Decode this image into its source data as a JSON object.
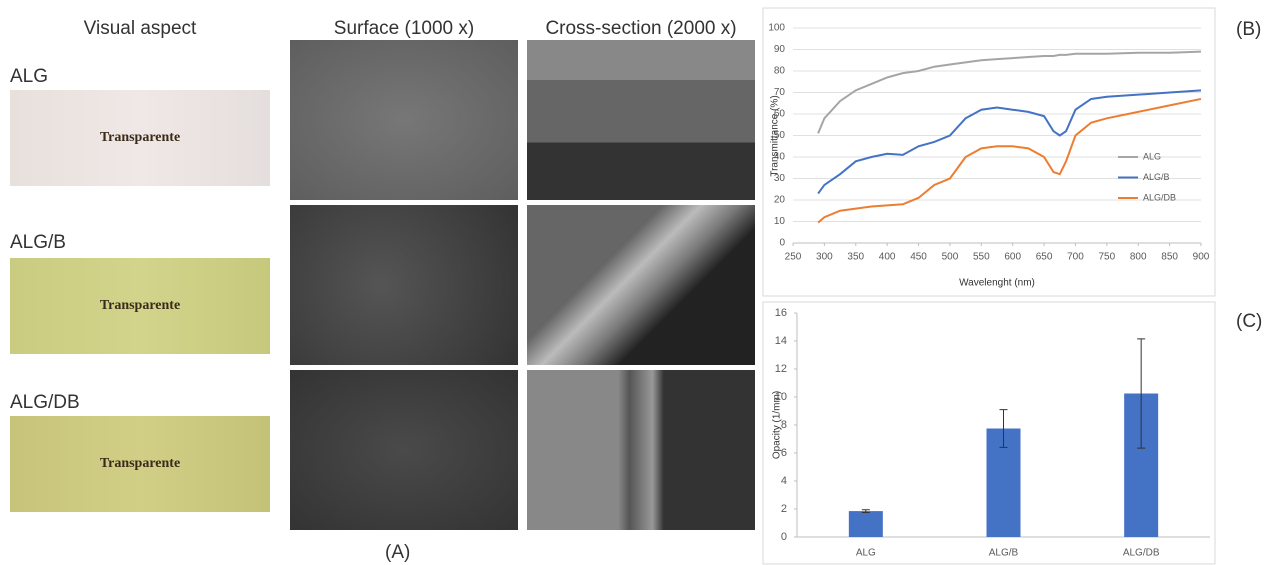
{
  "panel_a": {
    "label": "(A)",
    "headers": [
      "Visual aspect",
      "Surface (1000 x)",
      "Cross-section (2000 x)"
    ],
    "rows": [
      {
        "name": "ALG",
        "photo_text": "Transparente"
      },
      {
        "name": "ALG/B",
        "photo_text": "Transparente"
      },
      {
        "name": "ALG/DB",
        "photo_text": "Transparente"
      }
    ]
  },
  "chart_data": [
    {
      "type": "line",
      "panel_label": "(B)",
      "x_label": "Wavelenght (nm)",
      "y_label": "Transmittance (%)",
      "x": [
        290,
        300,
        325,
        350,
        375,
        400,
        425,
        450,
        475,
        500,
        525,
        550,
        575,
        600,
        625,
        650,
        665,
        675,
        685,
        700,
        725,
        750,
        800,
        850,
        900
      ],
      "series": [
        {
          "name": "ALG",
          "color": "#a5a5a5",
          "values": [
            51,
            58,
            66,
            71,
            74,
            77,
            79,
            80,
            82,
            83,
            84,
            85,
            85.5,
            86,
            86.5,
            87,
            87,
            87.5,
            87.5,
            88,
            88,
            88,
            88.5,
            88.5,
            89
          ]
        },
        {
          "name": "ALG/B",
          "color": "#4472c4",
          "values": [
            23,
            27,
            32,
            38,
            40,
            41.5,
            41,
            45,
            47,
            50,
            58,
            62,
            63,
            62,
            61,
            59,
            52,
            50,
            52,
            62,
            67,
            68,
            69,
            70,
            71
          ]
        },
        {
          "name": "ALG/DB",
          "color": "#ed7d31",
          "values": [
            9.5,
            12,
            15,
            16,
            17,
            17.5,
            18,
            21,
            27,
            30,
            40,
            44,
            45,
            45,
            44,
            40,
            33,
            32,
            38,
            50,
            56,
            58,
            61,
            64,
            67
          ]
        }
      ],
      "xlim": [
        250,
        900
      ],
      "xticks": [
        250,
        300,
        350,
        400,
        450,
        500,
        550,
        600,
        650,
        700,
        750,
        800,
        850,
        900
      ],
      "ylim": [
        0,
        100
      ],
      "yticks": [
        0,
        10,
        20,
        30,
        40,
        50,
        60,
        70,
        80,
        90,
        100
      ],
      "legend": "right"
    },
    {
      "type": "bar",
      "panel_label": "(C)",
      "y_label": "Opacity (1/mm)",
      "categories": [
        "ALG",
        "ALG/B",
        "ALG/DB"
      ],
      "values": [
        1.85,
        7.75,
        10.25
      ],
      "errors": [
        0.1,
        1.35,
        3.9
      ],
      "color": "#4472c4",
      "ylim": [
        0,
        16
      ],
      "yticks": [
        0,
        2,
        4,
        6,
        8,
        10,
        12,
        14,
        16
      ]
    }
  ]
}
